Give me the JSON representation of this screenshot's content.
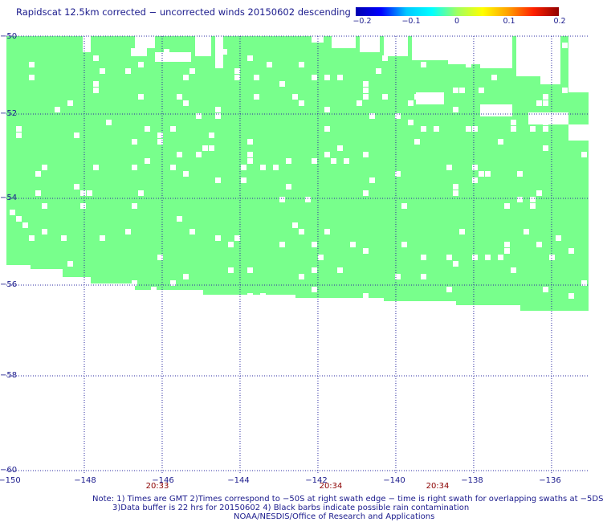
{
  "title": "Rapidscat 12.5km corrected − uncorrected winds 20150602 descending",
  "colorbar": {
    "labels": [
      "−0.2",
      "−0.1",
      "0",
      "0.1",
      "0.2"
    ],
    "values": [
      -0.2,
      -0.1,
      0,
      0.1,
      0.2
    ]
  },
  "map": {
    "lon_range": [
      -150,
      -135
    ],
    "lat_range": [
      -50,
      -60
    ],
    "y_ticks": [
      {
        "value": -50,
        "label": "−50"
      },
      {
        "value": -52,
        "label": "−52"
      },
      {
        "value": -54,
        "label": "−54"
      },
      {
        "value": -56,
        "label": "−56"
      },
      {
        "value": -58,
        "label": "−58"
      },
      {
        "value": -60,
        "label": "−60"
      }
    ],
    "x_ticks": [
      {
        "value": -150,
        "label": "−150"
      },
      {
        "value": -148,
        "label": "−148"
      },
      {
        "value": -146,
        "label": "−146"
      },
      {
        "value": -144,
        "label": "−144"
      },
      {
        "value": -142,
        "label": "−142"
      },
      {
        "value": -140,
        "label": "−140"
      },
      {
        "value": -138,
        "label": "−138"
      },
      {
        "value": -136,
        "label": "−136"
      }
    ],
    "time_labels": [
      {
        "lon": -146,
        "label": "20:33"
      },
      {
        "lon": -142,
        "label": "20:34"
      },
      {
        "lon": -139.1,
        "label": "20:34"
      }
    ],
    "fill_color": "#78ff8c",
    "grid": "dotted"
  },
  "notes": {
    "line1": "Note: 1) Times are GMT 2)Times correspond to −50S at right swath edge − time is right swath for overlapping swaths at −5DS",
    "line2": "3)Data buffer is 22 hrs for 20150602 4) Black barbs indicate possible rain contamination",
    "line3": "NOAA/NESDIS/Office of Research and Applications"
  }
}
